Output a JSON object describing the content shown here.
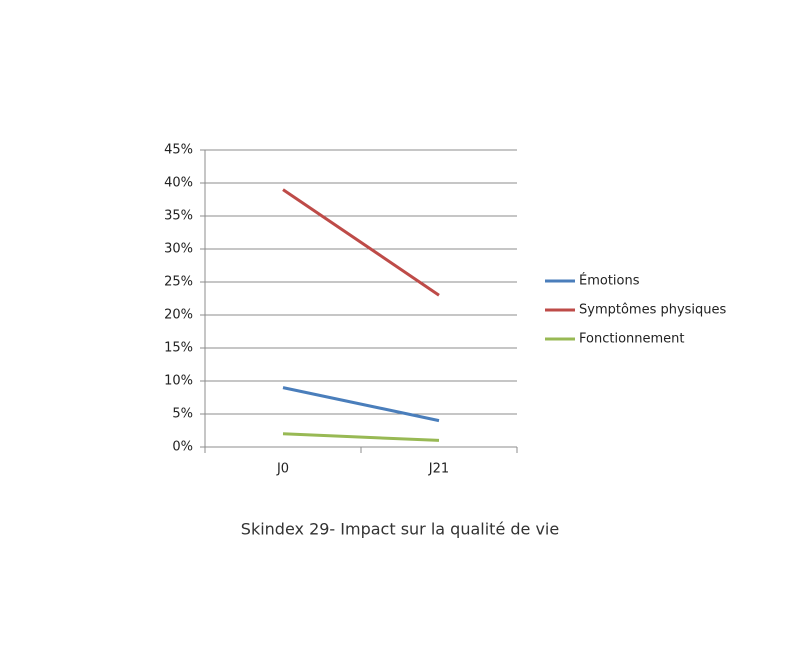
{
  "chart_data": {
    "type": "line",
    "title": "Skindex 29- Impact sur la qualité de vie",
    "categories": [
      "J0",
      "J21"
    ],
    "series": [
      {
        "name": "Émotions",
        "color": "#4a7ebb",
        "values": [
          9,
          4
        ]
      },
      {
        "name": "Symptômes physiques",
        "color": "#be4b48",
        "values": [
          39,
          23
        ]
      },
      {
        "name": "Fonctionnement",
        "color": "#98b954",
        "values": [
          2,
          1
        ]
      }
    ],
    "ylim": [
      0,
      45
    ],
    "yticks": [
      {
        "value": 0,
        "label": "0%"
      },
      {
        "value": 5,
        "label": "5%"
      },
      {
        "value": 10,
        "label": "10%"
      },
      {
        "value": 15,
        "label": "15%"
      },
      {
        "value": 20,
        "label": "20%"
      },
      {
        "value": 25,
        "label": "25%"
      },
      {
        "value": 30,
        "label": "30%"
      },
      {
        "value": 35,
        "label": "35%"
      },
      {
        "value": 40,
        "label": "40%"
      },
      {
        "value": 45,
        "label": "45%"
      }
    ],
    "grid": true,
    "legend": "right"
  }
}
